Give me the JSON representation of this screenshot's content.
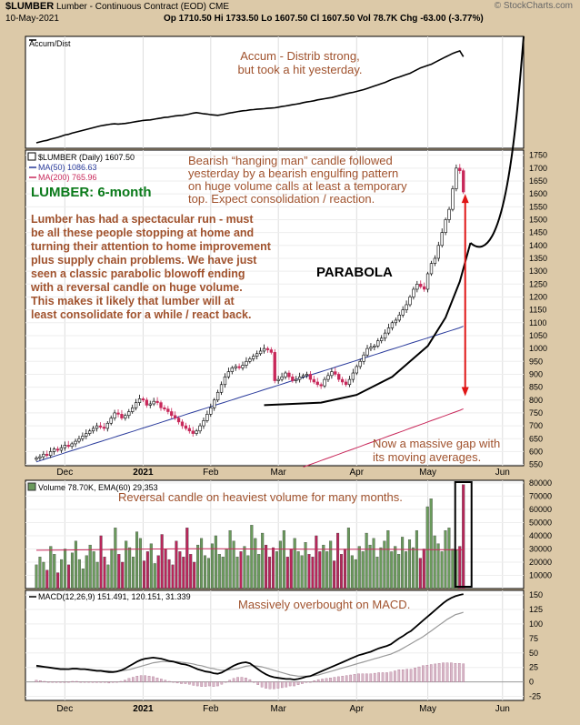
{
  "header": {
    "symbol": "$LUMBER",
    "name": "Lumber - Continuous Contract (EOD)",
    "exchange": "CME",
    "date": "10-May-2021",
    "ohlc": "Open 1710.50   Hi 1733.50   Lo 1607.50   Close 1607.50   Vol 78.7K   Chg -63.00 (-3.77%)",
    "ohlc_short": "Op 1710.50  Hi 1733.50  Lo 1607.50  Cl 1607.50  Vol 78.7K  Chg -63.00 (-3.77%)",
    "brand": "© StockCharts.com"
  },
  "colors": {
    "background": "#dcc9a8",
    "panel": "#ffffff",
    "up": "#ffffff",
    "down": "#c8285a",
    "ma50": "#2b3c9c",
    "ma200": "#c8285a",
    "vol_up": "#6a9a5c",
    "vol_down": "#b8265a",
    "annotation": "#a0522d",
    "title_green": "#0a7a1a",
    "arrow": "#e01515"
  },
  "annotations": {
    "accum": [
      "Accum - Distrib strong,",
      "but took a hit yesterday."
    ],
    "hanging": [
      "Bearish “hanging man” candle followed",
      "yesterday by a bearish engulfing pattern",
      "on huge volume calls at least a temporary",
      "top. Expect consolidation / reaction."
    ],
    "title": "LUMBER: 6-month",
    "spectacular": [
      "Lumber has had a spectacular run - must",
      "be all these people stopping at home and",
      "turning their attention to home improvement",
      "plus supply chain problems. We have just",
      "seen a classic parabolic blowoff ending",
      "with a reversal candle on huge volume.",
      "This makes it likely that lumber will at",
      "least consolidate for a while / react back."
    ],
    "parabola": "PARABOLA",
    "gap": [
      "Now a massive gap with",
      "its moving averages."
    ],
    "volume": "Reversal candle on heaviest volume for many months.",
    "macd": "Massively overbought on MACD."
  },
  "chart_data": [
    {
      "type": "line",
      "legend": "Accum/Dist",
      "values": [
        0,
        3,
        6,
        8,
        12,
        15,
        18,
        22,
        26,
        28,
        32,
        35,
        38,
        41,
        44,
        47,
        50,
        53,
        56,
        58,
        60,
        62,
        63,
        62,
        63,
        64,
        66,
        68,
        70,
        72,
        74,
        75,
        76,
        78,
        80,
        82,
        84,
        85,
        87,
        89,
        90,
        91,
        93,
        95,
        98,
        100,
        98,
        96,
        95,
        93,
        92,
        91,
        93,
        95,
        98,
        100,
        102,
        104,
        106,
        107,
        109,
        110,
        111,
        112,
        113,
        114,
        115,
        116,
        118,
        120,
        122,
        124,
        126,
        128,
        130,
        133,
        135,
        137,
        139,
        142,
        144,
        146,
        148,
        150,
        153,
        156,
        159,
        162,
        165,
        167,
        170,
        173,
        176,
        180,
        184,
        188,
        192,
        196,
        200,
        205,
        210,
        214,
        218,
        222,
        226,
        230,
        236,
        242,
        248,
        252,
        256,
        260,
        266,
        272,
        278,
        284,
        290,
        296,
        300,
        304,
        285
      ]
    },
    {
      "type": "candlestick",
      "legend": [
        "$LUMBER (Daily) 1607.50",
        "MA(50) 1086.63",
        "MA(200) 765.96"
      ],
      "y_ticks": [
        550,
        600,
        650,
        700,
        750,
        800,
        850,
        900,
        950,
        1000,
        1050,
        1100,
        1150,
        1200,
        1250,
        1300,
        1350,
        1400,
        1450,
        1500,
        1550,
        1600,
        1650,
        1700,
        1750
      ],
      "ylim": [
        545,
        1770
      ],
      "x_labels": [
        "Dec",
        "2021",
        "Feb",
        "Mar",
        "Apr",
        "May",
        "Jun"
      ],
      "close": [
        575,
        580,
        590,
        585,
        600,
        610,
        605,
        615,
        625,
        620,
        630,
        640,
        650,
        660,
        670,
        680,
        690,
        700,
        695,
        690,
        710,
        730,
        750,
        745,
        730,
        740,
        755,
        770,
        790,
        805,
        800,
        780,
        785,
        795,
        790,
        770,
        765,
        755,
        740,
        730,
        715,
        700,
        690,
        680,
        670,
        680,
        700,
        720,
        745,
        770,
        800,
        830,
        860,
        890,
        910,
        925,
        930,
        925,
        935,
        950,
        960,
        970,
        980,
        990,
        1000,
        995,
        985,
        875,
        880,
        890,
        905,
        890,
        875,
        880,
        890,
        895,
        900,
        880,
        870,
        860,
        855,
        880,
        895,
        910,
        900,
        880,
        870,
        860,
        880,
        905,
        930,
        950,
        975,
        1000,
        1005,
        1010,
        1030,
        1040,
        1060,
        1080,
        1100,
        1110,
        1130,
        1150,
        1170,
        1200,
        1230,
        1250,
        1240,
        1230,
        1290,
        1330,
        1350,
        1400,
        1450,
        1500,
        1540,
        1620,
        1700,
        1690,
        1607.5
      ],
      "ma50": [
        560,
        565,
        570,
        575,
        580,
        585,
        590,
        595,
        600,
        605,
        610,
        615,
        620,
        625,
        630,
        635,
        640,
        645,
        650,
        655,
        660,
        665,
        670,
        675,
        680,
        685,
        690,
        695,
        700,
        705,
        710,
        715,
        720,
        725,
        730,
        735,
        740,
        745,
        750,
        755,
        760,
        765,
        770,
        775,
        780,
        785,
        790,
        795,
        800,
        805,
        810,
        815,
        820,
        825,
        830,
        835,
        840,
        845,
        850,
        855,
        860,
        865,
        870,
        875,
        880,
        885,
        890,
        895,
        900,
        905,
        910,
        915,
        920,
        925,
        930,
        935,
        940,
        945,
        950,
        955,
        960,
        965,
        970,
        975,
        980,
        985,
        990,
        995,
        1000,
        1005,
        1010,
        1015,
        1020,
        1025,
        1030,
        1035,
        1040,
        1045,
        1050,
        1055,
        1060,
        1065,
        1070,
        1075,
        1080,
        1086.63
      ],
      "ma200": [
        540,
        545,
        550,
        555,
        560,
        565,
        570,
        575,
        580,
        585,
        590,
        595,
        600,
        605,
        610,
        615,
        620,
        625,
        630,
        635,
        640,
        645,
        650,
        655,
        660,
        665,
        670,
        675,
        680,
        685,
        690,
        695,
        700,
        705,
        710,
        715,
        720,
        725,
        730,
        735,
        740,
        745,
        750,
        755,
        760,
        765.96
      ],
      "parabola": [
        [
          64,
          780
        ],
        [
          80,
          790
        ],
        [
          90,
          820
        ],
        [
          100,
          890
        ],
        [
          110,
          1010
        ],
        [
          115,
          1120
        ],
        [
          119,
          1260
        ],
        [
          122,
          1410
        ]
      ]
    },
    {
      "type": "bar",
      "legend": "Volume 78.70K, EMA(60) 29,353",
      "y_ticks": [
        10000,
        20000,
        30000,
        40000,
        50000,
        60000,
        70000,
        80000
      ],
      "ylim": [
        0,
        82000
      ],
      "values": [
        18000,
        24000,
        20000,
        14000,
        32000,
        26000,
        12000,
        22000,
        30000,
        18000,
        27000,
        36000,
        22000,
        15000,
        25000,
        33000,
        28000,
        20000,
        40000,
        24000,
        18000,
        30000,
        46000,
        26000,
        20000,
        36000,
        31000,
        24000,
        43000,
        38000,
        21000,
        28000,
        34000,
        19000,
        25000,
        41000,
        30000,
        22000,
        18000,
        36000,
        28000,
        24000,
        46000,
        26000,
        20000,
        33000,
        38000,
        25000,
        23000,
        34000,
        40000,
        26000,
        24000,
        30000,
        44000,
        36000,
        24000,
        28000,
        32000,
        25000,
        48000,
        38000,
        26000,
        42000,
        33000,
        24000,
        31000,
        28000,
        36000,
        44000,
        24000,
        30000,
        38000,
        28000,
        25000,
        35000,
        26000,
        24000,
        40000,
        28000,
        33000,
        28000,
        36000,
        21000,
        42000,
        26000,
        30000,
        46000,
        25000,
        22000,
        32000,
        28000,
        42000,
        33000,
        38000,
        24000,
        31000,
        36000,
        44000,
        28000,
        32000,
        26000,
        39000,
        28000,
        37000,
        31000,
        44000,
        23000,
        30000,
        62000,
        68000,
        40000,
        34000,
        28000,
        44000,
        46000,
        30000,
        29000,
        32000,
        78700
      ],
      "ema60": [
        29000,
        29200,
        29500,
        29800,
        30000,
        30200,
        30100,
        30000,
        29900,
        29800,
        29700,
        29800,
        29600,
        29500,
        29353
      ]
    },
    {
      "type": "line",
      "legend": "MACD(12,26,9) 151.491, 120.151, 31.339",
      "y_ticks": [
        -25,
        0,
        25,
        50,
        75,
        100,
        125,
        150
      ],
      "ylim": [
        -32,
        158
      ],
      "macd": [
        28,
        27,
        26,
        25,
        24,
        23,
        22,
        22,
        22,
        23,
        23,
        22,
        22,
        21,
        20,
        19,
        19,
        18,
        17,
        17,
        18,
        20,
        23,
        27,
        31,
        35,
        38,
        40,
        41,
        42,
        41,
        40,
        38,
        36,
        35,
        33,
        31,
        30,
        28,
        25,
        22,
        20,
        18,
        17,
        15,
        14,
        16,
        20,
        24,
        28,
        31,
        33,
        34,
        32,
        27,
        22,
        17,
        13,
        10,
        8,
        7,
        6,
        5,
        5,
        4,
        5,
        7,
        9,
        10,
        13,
        16,
        19,
        22,
        25,
        28,
        31,
        34,
        37,
        40,
        43,
        46,
        48,
        50,
        52,
        55,
        58,
        60,
        62,
        65,
        70,
        75,
        79,
        84,
        88,
        94,
        100,
        106,
        112,
        118,
        124,
        130,
        136,
        141,
        145,
        148,
        150,
        151.491
      ],
      "signal": [
        25,
        25,
        25,
        25,
        24,
        24,
        23,
        23,
        22,
        22,
        22,
        22,
        22,
        21,
        21,
        20,
        20,
        19,
        19,
        18,
        18,
        19,
        20,
        21,
        23,
        25,
        27,
        29,
        31,
        33,
        34,
        35,
        35,
        35,
        35,
        35,
        34,
        33,
        32,
        31,
        29,
        28,
        26,
        24,
        23,
        21,
        20,
        20,
        21,
        22,
        23,
        25,
        27,
        28,
        28,
        27,
        26,
        24,
        22,
        20,
        18,
        16,
        14,
        12,
        11,
        10,
        10,
        10,
        10,
        11,
        12,
        14,
        16,
        18,
        20,
        22,
        24,
        26,
        28,
        30,
        32,
        34,
        36,
        38,
        40,
        42,
        44,
        46,
        48,
        51,
        54,
        58,
        62,
        66,
        70,
        74,
        78,
        83,
        88,
        93,
        98,
        103,
        108,
        112,
        116,
        118,
        120.151
      ],
      "histogram": [
        3,
        2,
        1,
        0,
        0,
        -1,
        -1,
        -1,
        0,
        1,
        1,
        0,
        0,
        0,
        -1,
        -1,
        -1,
        -1,
        -2,
        -1,
        0,
        1,
        3,
        6,
        8,
        10,
        11,
        11,
        10,
        9,
        7,
        5,
        3,
        1,
        0,
        -2,
        -3,
        -3,
        -4,
        -6,
        -7,
        -8,
        -8,
        -7,
        -8,
        -7,
        -4,
        0,
        3,
        6,
        8,
        8,
        7,
        4,
        -1,
        -5,
        -9,
        -11,
        -12,
        -12,
        -11,
        -10,
        -9,
        -7,
        -7,
        -5,
        -3,
        -1,
        0,
        2,
        4,
        5,
        6,
        7,
        8,
        9,
        10,
        11,
        12,
        13,
        14,
        14,
        14,
        14,
        15,
        16,
        16,
        16,
        17,
        19,
        21,
        21,
        22,
        22,
        24,
        26,
        28,
        29,
        30,
        31,
        32,
        33,
        33,
        33,
        32,
        32,
        31.339
      ]
    }
  ]
}
